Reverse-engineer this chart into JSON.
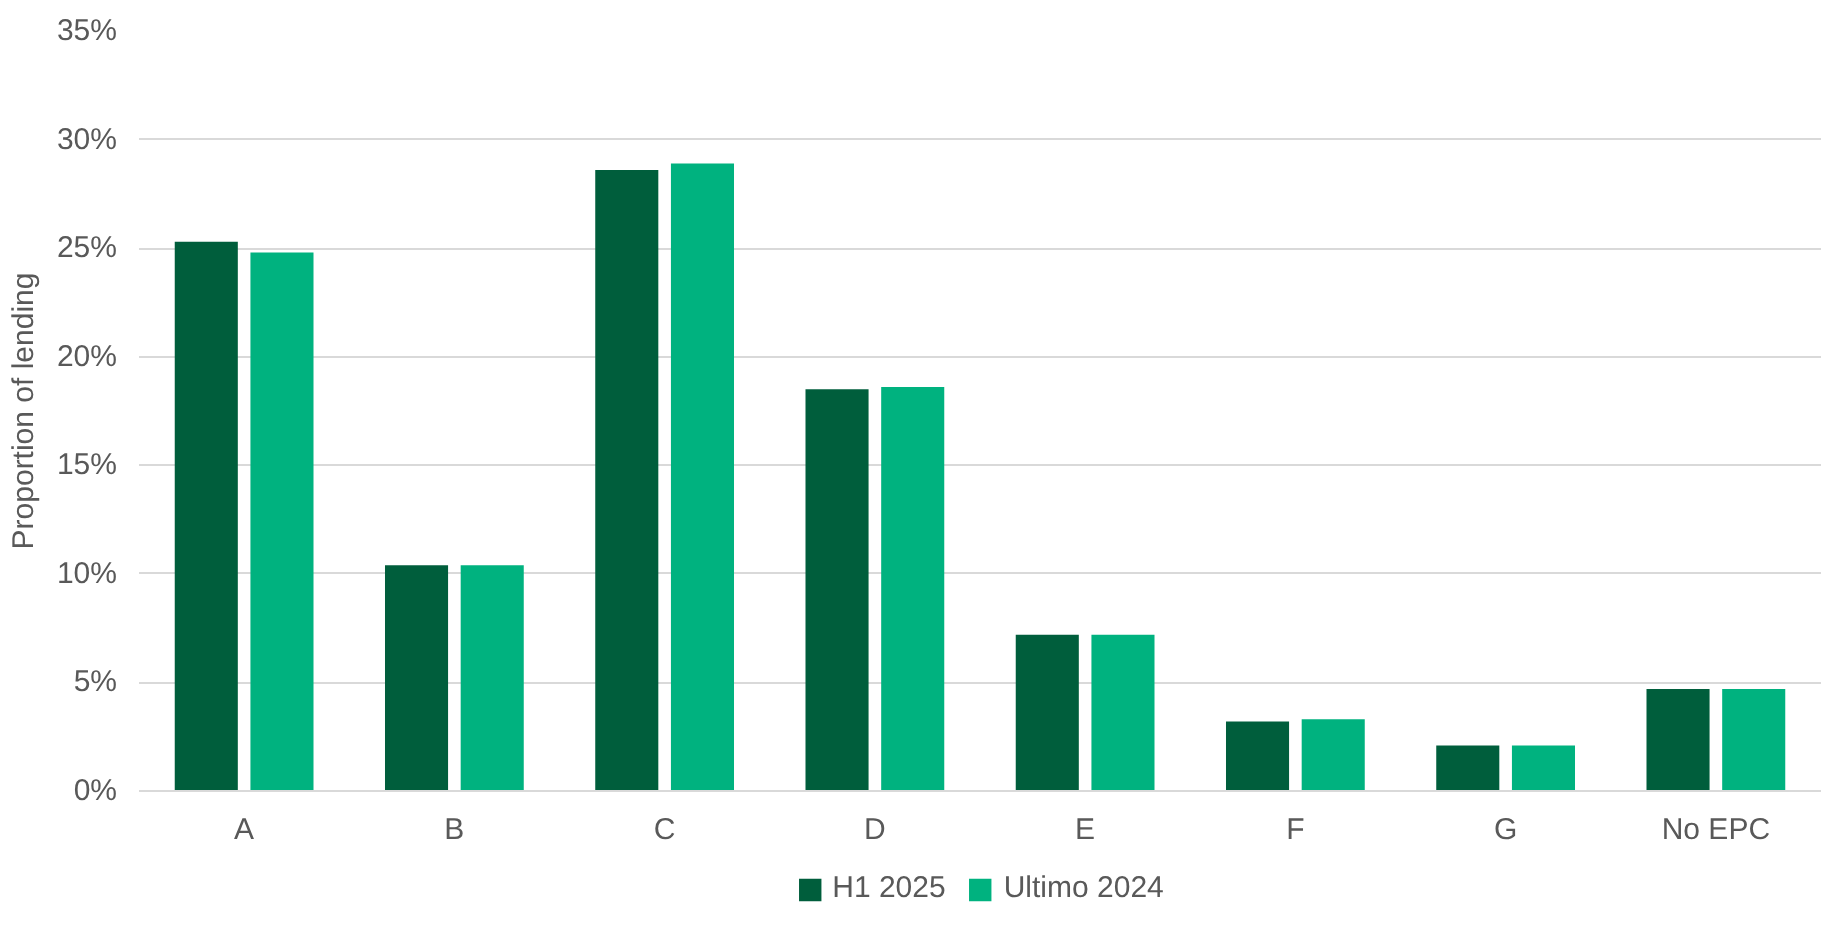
{
  "chart_data": {
    "type": "bar",
    "ylabel": "Proportion of lending",
    "categories": [
      "A",
      "B",
      "C",
      "D",
      "E",
      "F",
      "G",
      "No EPC"
    ],
    "series": [
      {
        "name": "H1 2025",
        "color": "#005e3c",
        "values": [
          25.3,
          10.4,
          28.6,
          18.5,
          7.2,
          3.2,
          2.1,
          4.7
        ]
      },
      {
        "name": "Ultimo 2024",
        "color": "#00b27f",
        "values": [
          24.8,
          10.4,
          28.9,
          18.6,
          7.2,
          3.3,
          2.1,
          4.7
        ]
      }
    ],
    "ylim": [
      0,
      35
    ],
    "yticks": [
      {
        "value": 0,
        "label": "0%"
      },
      {
        "value": 5,
        "label": "5%"
      },
      {
        "value": 10,
        "label": "10%"
      },
      {
        "value": 15,
        "label": "15%"
      },
      {
        "value": 20,
        "label": "20%"
      },
      {
        "value": 25,
        "label": "25%"
      },
      {
        "value": 30,
        "label": "30%"
      },
      {
        "value": 35,
        "label": "35%"
      }
    ],
    "grid": "y",
    "legend": "bottom"
  }
}
